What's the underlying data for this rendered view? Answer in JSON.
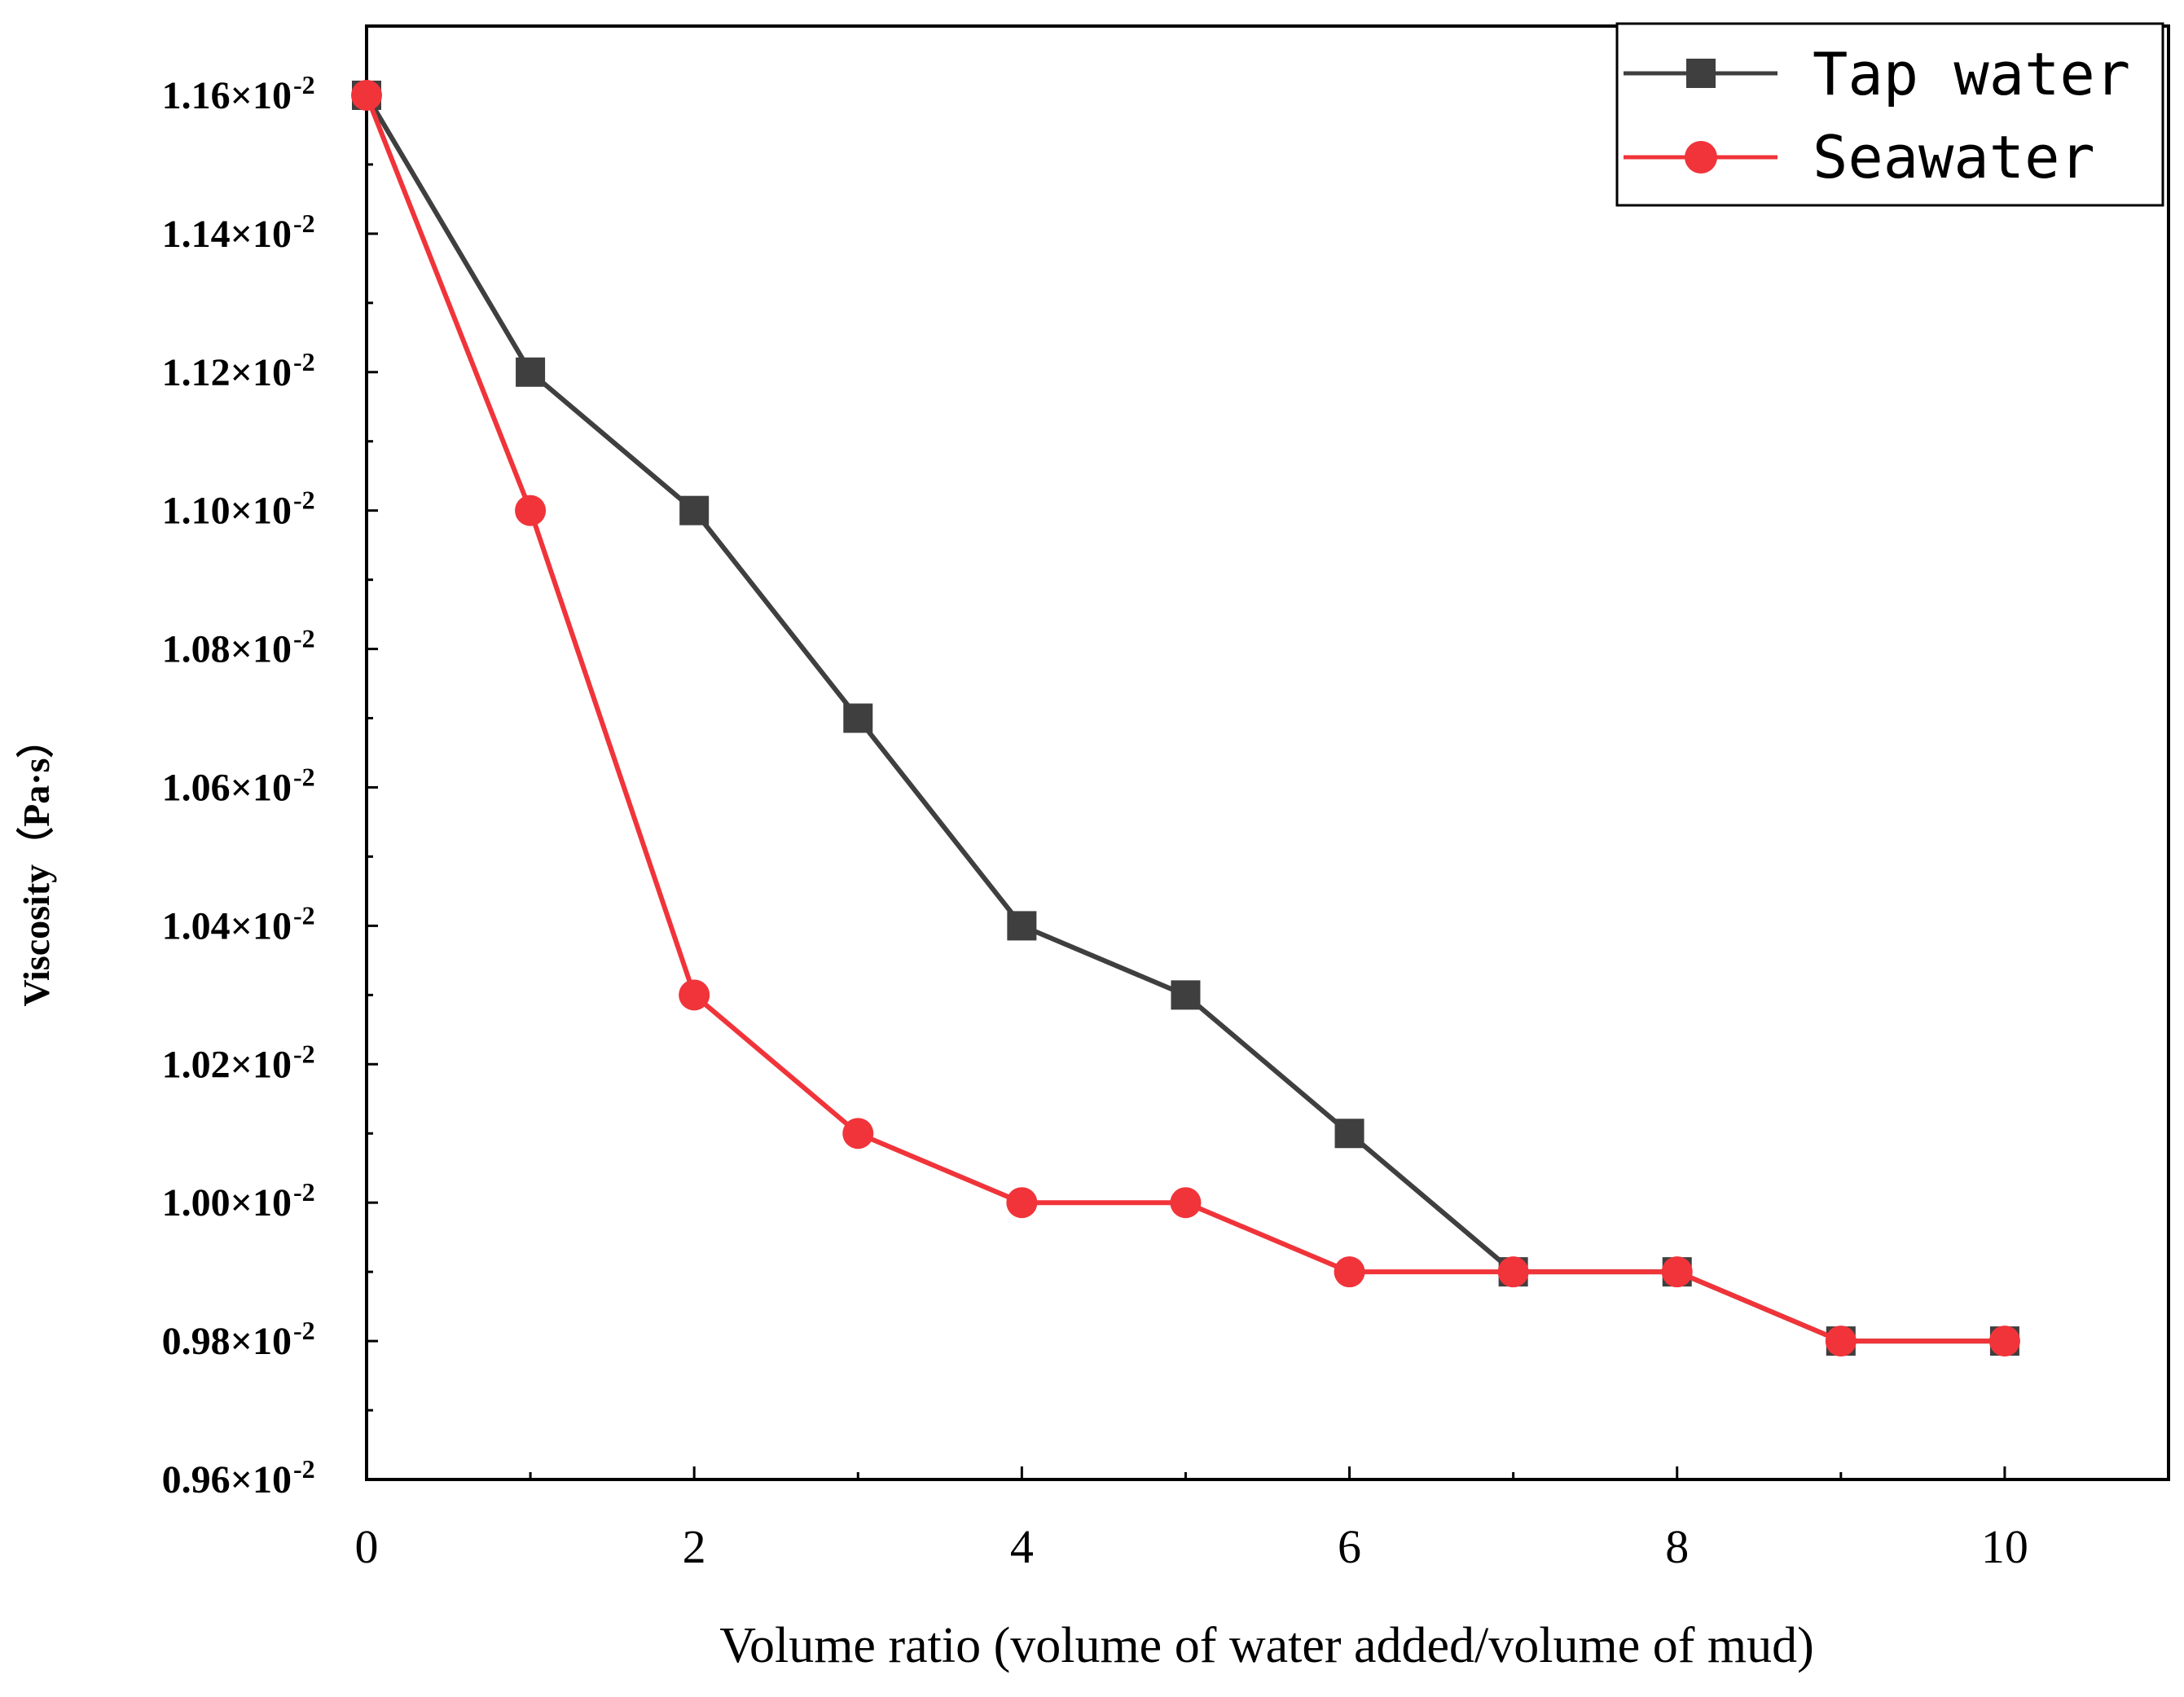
{
  "chart_data": {
    "type": "line",
    "title": "",
    "xlabel": "Volume ratio (volume of water added/volume of mud)",
    "ylabel": "Viscosity（Pa·s）",
    "x": [
      0,
      1,
      2,
      3,
      4,
      5,
      6,
      7,
      8,
      9,
      10
    ],
    "xlim": [
      0,
      11
    ],
    "ylim": [
      0.96,
      1.17
    ],
    "xticks": [
      0,
      2,
      4,
      6,
      8,
      10
    ],
    "xtick_labels": [
      "0",
      "2",
      "4",
      "6",
      "8",
      "10"
    ],
    "yticks": [
      0.96,
      0.98,
      1.0,
      1.02,
      1.04,
      1.06,
      1.08,
      1.1,
      1.12,
      1.14,
      1.16
    ],
    "ytick_labels": [
      "0.96×10",
      "0.98×10",
      "1.00×10",
      "1.02×10",
      "1.04×10",
      "1.06×10",
      "1.08×10",
      "1.10×10",
      "1.12×10",
      "1.14×10",
      "1.16×10"
    ],
    "ytick_exponent": "-2",
    "y_unit_scale": "×10^-2 Pa·s",
    "grid": false,
    "legend_position": "top-right",
    "series": [
      {
        "name": "Tap water",
        "color": "#3f3f3f",
        "marker": "square",
        "values": [
          1.16,
          1.12,
          1.1,
          1.07,
          1.04,
          1.03,
          1.01,
          0.99,
          0.99,
          0.98,
          0.98
        ]
      },
      {
        "name": "Seawater",
        "color": "#f0343a",
        "marker": "circle",
        "values": [
          1.16,
          1.1,
          1.03,
          1.01,
          1.0,
          1.0,
          0.99,
          0.99,
          0.99,
          0.98,
          0.98
        ]
      }
    ]
  }
}
